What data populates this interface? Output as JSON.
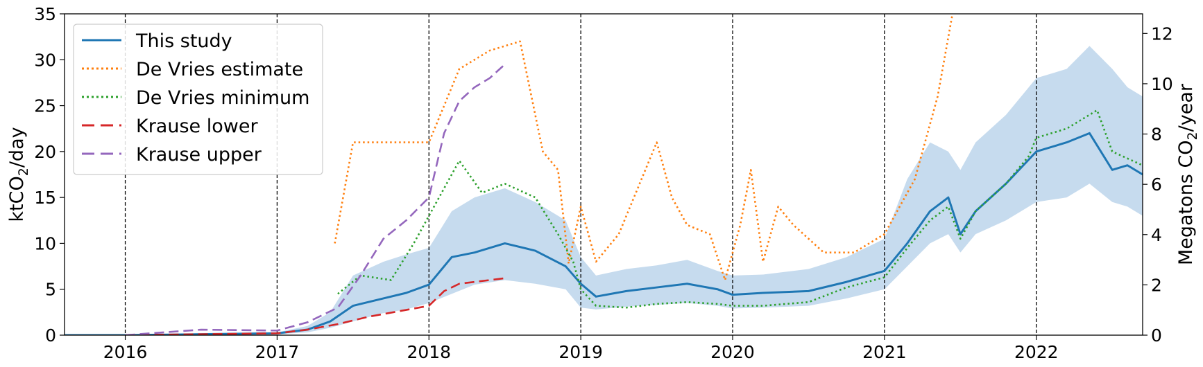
{
  "chart_data": {
    "type": "line",
    "xlim": [
      2015.6,
      2022.7
    ],
    "ylim": [
      0,
      35
    ],
    "y2lim": [
      0,
      12.78
    ],
    "ylabel": "ktCO",
    "ylabel_sub": "2",
    "ylabel_tail": "/day",
    "y2label": "Megatons CO",
    "y2label_sub": "2",
    "y2label_tail": "/year",
    "x_ticks": [
      2016,
      2017,
      2018,
      2019,
      2020,
      2021,
      2022
    ],
    "x_tick_labels": [
      "2016",
      "2017",
      "2018",
      "2019",
      "2020",
      "2021",
      "2022"
    ],
    "y_ticks": [
      0,
      5,
      10,
      15,
      20,
      25,
      30,
      35
    ],
    "y_tick_labels": [
      "0",
      "5",
      "10",
      "15",
      "20",
      "25",
      "30",
      "35"
    ],
    "y2_ticks": [
      0,
      2,
      4,
      6,
      8,
      10,
      12
    ],
    "y2_tick_labels": [
      "0",
      "2",
      "4",
      "6",
      "8",
      "10",
      "12"
    ],
    "vlines": [
      2016,
      2017,
      2018,
      2019,
      2020,
      2021,
      2022
    ],
    "legend_position": "top-left",
    "series": [
      {
        "name": "This study",
        "color": "#1f77b4",
        "style": "solid",
        "x": [
          2015.6,
          2016.0,
          2016.5,
          2017.0,
          2017.2,
          2017.35,
          2017.5,
          2017.7,
          2017.85,
          2018.0,
          2018.15,
          2018.3,
          2018.5,
          2018.7,
          2018.9,
          2019.0,
          2019.1,
          2019.3,
          2019.5,
          2019.7,
          2019.9,
          2020.0,
          2020.2,
          2020.5,
          2020.75,
          2021.0,
          2021.15,
          2021.3,
          2021.42,
          2021.5,
          2021.6,
          2021.8,
          2022.0,
          2022.2,
          2022.35,
          2022.5,
          2022.6,
          2022.7
        ],
        "y": [
          0,
          0,
          0.1,
          0.2,
          0.6,
          1.5,
          3.2,
          4.0,
          4.6,
          5.5,
          8.5,
          9.0,
          10.0,
          9.2,
          7.5,
          5.6,
          4.2,
          4.8,
          5.2,
          5.6,
          5.0,
          4.4,
          4.6,
          4.8,
          5.8,
          7.0,
          10.0,
          13.5,
          15.0,
          11.0,
          13.5,
          16.5,
          20.0,
          21.0,
          22.0,
          18.0,
          18.5,
          17.5
        ]
      },
      {
        "name": "De Vries estimate",
        "color": "#ff7f0e",
        "style": "dotted",
        "x": [
          2017.38,
          2017.5,
          2017.55,
          2017.8,
          2018.0,
          2018.2,
          2018.4,
          2018.6,
          2018.65,
          2018.75,
          2018.85,
          2018.92,
          2019.0,
          2019.1,
          2019.25,
          2019.4,
          2019.5,
          2019.6,
          2019.7,
          2019.85,
          2019.95,
          2020.05,
          2020.12,
          2020.2,
          2020.3,
          2020.4,
          2020.6,
          2020.8,
          2021.0,
          2021.2,
          2021.35,
          2021.45
        ],
        "y": [
          10,
          21,
          21,
          21,
          21,
          29,
          31,
          32,
          28,
          20,
          18,
          7.8,
          14,
          8,
          11,
          17,
          21,
          15,
          12,
          11,
          6,
          12,
          18,
          8,
          14,
          12,
          9,
          9,
          11,
          17,
          26,
          35.2
        ]
      },
      {
        "name": "De Vries minimum",
        "color": "#2ca02c",
        "style": "dotted",
        "x": [
          2017.4,
          2017.55,
          2017.75,
          2017.9,
          2018.05,
          2018.2,
          2018.35,
          2018.5,
          2018.7,
          2018.85,
          2018.95,
          2019.0,
          2019.1,
          2019.3,
          2019.5,
          2019.7,
          2019.9,
          2020.0,
          2020.2,
          2020.5,
          2020.75,
          2021.0,
          2021.15,
          2021.3,
          2021.42,
          2021.5,
          2021.6,
          2021.8,
          2021.95,
          2022.0,
          2022.2,
          2022.4,
          2022.5,
          2022.7
        ],
        "y": [
          4.5,
          6.5,
          6.0,
          10.0,
          14.5,
          19.0,
          15.5,
          16.5,
          15.0,
          11.0,
          8.0,
          5.0,
          3.2,
          3.0,
          3.4,
          3.6,
          3.4,
          3.2,
          3.2,
          3.6,
          5.2,
          6.3,
          9.5,
          12.5,
          14.0,
          10.5,
          13.5,
          16.5,
          19.5,
          21.5,
          22.5,
          24.5,
          20.0,
          18.5
        ]
      },
      {
        "name": "Krause lower",
        "color": "#d62728",
        "style": "dashed",
        "x": [
          2016.0,
          2016.5,
          2017.0,
          2017.2,
          2017.4,
          2017.6,
          2017.8,
          2018.0,
          2018.1,
          2018.2,
          2018.3,
          2018.4,
          2018.5
        ],
        "y": [
          0,
          0.1,
          0.2,
          0.6,
          1.2,
          2.0,
          2.6,
          3.2,
          4.8,
          5.6,
          5.8,
          6.0,
          6.2
        ]
      },
      {
        "name": "Krause upper",
        "color": "#9467bd",
        "style": "dashed",
        "x": [
          2016.0,
          2016.5,
          2017.0,
          2017.2,
          2017.4,
          2017.55,
          2017.7,
          2017.85,
          2018.0,
          2018.1,
          2018.2,
          2018.3,
          2018.4,
          2018.5
        ],
        "y": [
          0,
          0.6,
          0.5,
          1.4,
          3.0,
          6.5,
          10.5,
          12.5,
          15.0,
          22.0,
          25.5,
          27.0,
          28.0,
          29.5
        ]
      }
    ],
    "band": {
      "name": "",
      "color": "#c6dbee",
      "x": [
        2015.6,
        2016.0,
        2016.5,
        2017.0,
        2017.2,
        2017.35,
        2017.5,
        2017.7,
        2017.85,
        2018.0,
        2018.15,
        2018.3,
        2018.5,
        2018.7,
        2018.9,
        2019.0,
        2019.1,
        2019.3,
        2019.5,
        2019.7,
        2019.9,
        2020.0,
        2020.2,
        2020.5,
        2020.75,
        2021.0,
        2021.15,
        2021.3,
        2021.42,
        2021.5,
        2021.6,
        2021.8,
        2022.0,
        2022.2,
        2022.35,
        2022.5,
        2022.6,
        2022.7
      ],
      "upper": [
        0,
        0,
        0.1,
        0.3,
        1.0,
        2.5,
        6.5,
        8.0,
        8.8,
        9.5,
        13.5,
        15.0,
        16.0,
        14.5,
        12.5,
        8.5,
        6.5,
        7.2,
        7.6,
        8.2,
        7.0,
        6.5,
        6.6,
        7.2,
        8.5,
        10.5,
        17.0,
        21.0,
        20.0,
        18.0,
        21.0,
        24.0,
        28.0,
        29.0,
        31.5,
        29.0,
        27.0,
        26.0
      ],
      "lower": [
        0,
        0,
        0,
        0.1,
        0.3,
        0.8,
        1.5,
        2.4,
        2.8,
        3.5,
        4.5,
        5.5,
        6.0,
        5.6,
        5.0,
        3.0,
        2.8,
        3.1,
        3.3,
        3.5,
        3.2,
        2.9,
        3.0,
        3.2,
        4.0,
        5.0,
        7.5,
        10.0,
        11.0,
        9.0,
        11.0,
        12.5,
        14.5,
        15.0,
        16.5,
        14.5,
        14.0,
        13.0
      ]
    },
    "legend": [
      {
        "label": "This study",
        "color": "#1f77b4",
        "style": "solid"
      },
      {
        "label": "De Vries estimate",
        "color": "#ff7f0e",
        "style": "dotted"
      },
      {
        "label": "De Vries minimum",
        "color": "#2ca02c",
        "style": "dotted"
      },
      {
        "label": "Krause lower",
        "color": "#d62728",
        "style": "dashed"
      },
      {
        "label": "Krause upper",
        "color": "#9467bd",
        "style": "dashed"
      }
    ]
  }
}
